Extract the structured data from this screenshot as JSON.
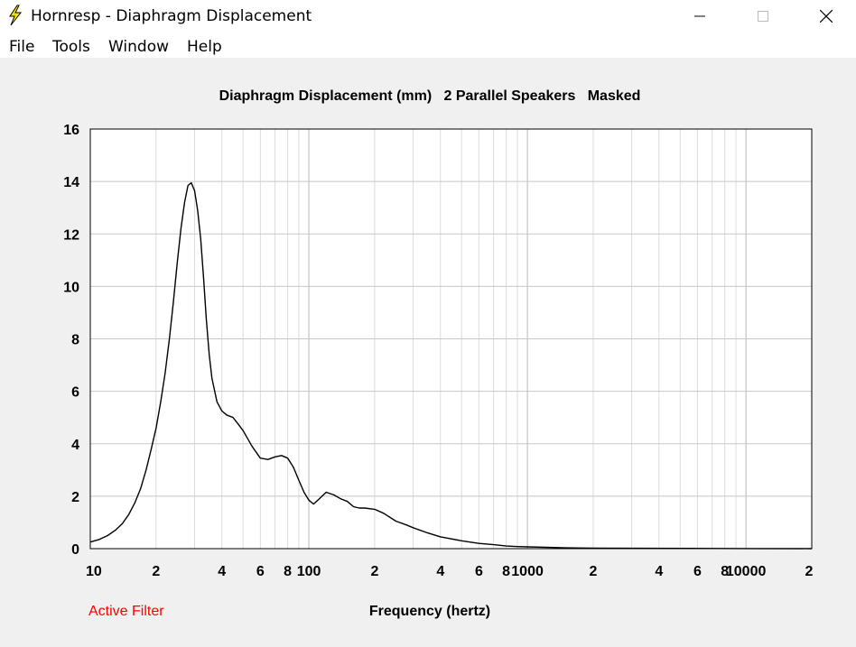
{
  "window": {
    "title": "Hornresp - Diaphragm Displacement",
    "minimize_icon": "minimize-icon",
    "maximize_icon": "maximize-icon",
    "close_icon": "close-icon",
    "app_icon": "lightning-icon"
  },
  "menu": {
    "items": [
      {
        "label": "File"
      },
      {
        "label": "Tools"
      },
      {
        "label": "Window"
      },
      {
        "label": "Help"
      }
    ]
  },
  "status": {
    "active_filter": "Active Filter",
    "active_filter_color": "#ff0000"
  },
  "chart_data": {
    "type": "line",
    "title": "Diaphragm Displacement (mm)   2 Parallel Speakers   Masked",
    "xlabel": "Frequency (hertz)",
    "ylabel": "",
    "xscale": "log",
    "xlim": [
      10,
      20000
    ],
    "ylim": [
      0,
      16
    ],
    "grid": true,
    "yticks": [
      "0",
      "2",
      "4",
      "6",
      "8",
      "10",
      "12",
      "14",
      "16"
    ],
    "xticks": [
      {
        "value": 10,
        "label": "10"
      },
      {
        "value": 20,
        "label": "2"
      },
      {
        "value": 40,
        "label": "4"
      },
      {
        "value": 60,
        "label": "6"
      },
      {
        "value": 80,
        "label": "8"
      },
      {
        "value": 100,
        "label": "100"
      },
      {
        "value": 200,
        "label": "2"
      },
      {
        "value": 400,
        "label": "4"
      },
      {
        "value": 600,
        "label": "6"
      },
      {
        "value": 800,
        "label": "8"
      },
      {
        "value": 1000,
        "label": "1000"
      },
      {
        "value": 2000,
        "label": "2"
      },
      {
        "value": 4000,
        "label": "4"
      },
      {
        "value": 6000,
        "label": "6"
      },
      {
        "value": 8000,
        "label": "8"
      },
      {
        "value": 10000,
        "label": "10000"
      },
      {
        "value": 20000,
        "label": "2"
      }
    ],
    "series": [
      {
        "color": "#000000",
        "x": [
          10,
          11,
          12,
          13,
          14,
          15,
          16,
          17,
          18,
          19,
          20,
          21,
          22,
          23,
          24,
          25,
          26,
          27,
          28,
          29,
          30,
          31,
          32,
          33,
          34,
          35,
          36,
          38,
          40,
          42,
          45,
          48,
          50,
          55,
          60,
          65,
          70,
          75,
          80,
          85,
          90,
          95,
          100,
          105,
          110,
          120,
          130,
          140,
          150,
          160,
          170,
          180,
          200,
          220,
          250,
          280,
          300,
          350,
          400,
          500,
          600,
          700,
          800,
          900,
          1000,
          1500,
          2000,
          5000,
          10000,
          20000
        ],
        "y": [
          0.25,
          0.35,
          0.5,
          0.7,
          0.95,
          1.3,
          1.75,
          2.3,
          3.0,
          3.8,
          4.6,
          5.6,
          6.7,
          8.0,
          9.4,
          10.9,
          12.2,
          13.2,
          13.85,
          13.95,
          13.65,
          12.9,
          11.8,
          10.3,
          8.7,
          7.4,
          6.5,
          5.6,
          5.25,
          5.1,
          5.0,
          4.7,
          4.5,
          3.9,
          3.45,
          3.4,
          3.5,
          3.55,
          3.45,
          3.1,
          2.6,
          2.15,
          1.85,
          1.7,
          1.85,
          2.15,
          2.05,
          1.9,
          1.8,
          1.6,
          1.55,
          1.55,
          1.5,
          1.35,
          1.05,
          0.9,
          0.8,
          0.6,
          0.45,
          0.3,
          0.2,
          0.15,
          0.1,
          0.08,
          0.07,
          0.03,
          0.02,
          0.01,
          0.005,
          0.0
        ]
      }
    ]
  }
}
